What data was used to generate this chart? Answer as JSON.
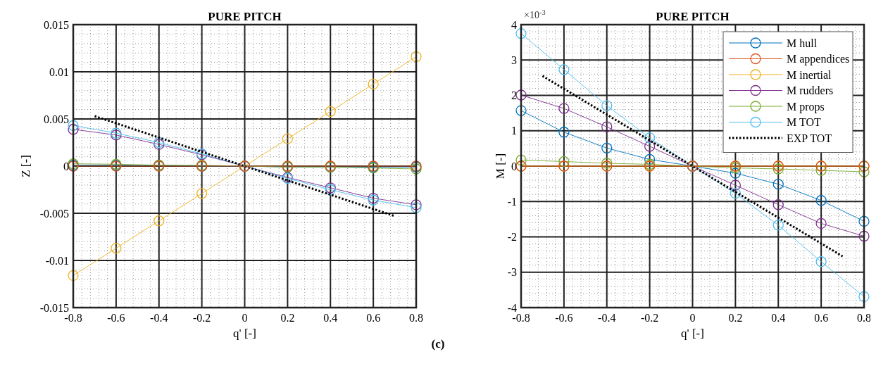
{
  "chart_data": [
    {
      "type": "line",
      "title": "PURE PITCH",
      "xlabel": "q' [-]",
      "ylabel": "Z [-]",
      "xlim": [
        -0.8,
        0.8
      ],
      "xticks": [
        -0.8,
        -0.6,
        -0.4,
        -0.2,
        0,
        0.2,
        0.4,
        0.6,
        0.8
      ],
      "ylim": [
        -0.015,
        0.015
      ],
      "yticks": [
        -0.015,
        -0.01,
        -0.005,
        0,
        0.005,
        0.01,
        0.015
      ],
      "grid": true,
      "marker": "circle",
      "x": [
        -0.8,
        -0.6,
        -0.4,
        -0.2,
        0,
        0.2,
        0.4,
        0.6,
        0.8
      ],
      "annotations": [
        "(c)"
      ],
      "series": [
        {
          "color": "#0072bd",
          "values": [
            0.0001,
            0.0001,
            0.0001,
            0,
            0,
            -0.0001,
            -0.0001,
            -0.0001,
            -0.0001
          ]
        },
        {
          "color": "#d95319",
          "values": [
            0,
            0,
            0,
            0,
            0,
            0,
            0,
            0,
            0
          ]
        },
        {
          "color": "#edb120",
          "values": [
            -0.0116,
            -0.0087,
            -0.0058,
            -0.0029,
            0,
            0.0029,
            0.0058,
            0.0087,
            0.0116
          ]
        },
        {
          "color": "#7e2f8e",
          "values": [
            0.0039,
            0.0033,
            0.0023,
            0.0012,
            0,
            -0.0012,
            -0.0023,
            -0.0034,
            -0.0041
          ]
        },
        {
          "color": "#77ac30",
          "values": [
            0.00025,
            0.0002,
            0.0001,
            0.0001,
            0,
            -0.0001,
            -0.0001,
            -0.0002,
            -0.0003
          ]
        },
        {
          "color": "#4dbeee",
          "values": [
            0.0043,
            0.0035,
            0.0025,
            0.0013,
            0,
            -0.0013,
            -0.0025,
            -0.0036,
            -0.0044
          ]
        },
        {
          "color": "#000000",
          "marker": "none",
          "line_style": "dotted",
          "x": [
            -0.7,
            0,
            0.7
          ],
          "values": [
            0.0053,
            0,
            -0.0053
          ]
        }
      ]
    },
    {
      "type": "line",
      "title": "PURE PITCH",
      "xlabel": "q' [-]",
      "ylabel": "M [-]",
      "xlim": [
        -0.8,
        0.8
      ],
      "xticks": [
        -0.8,
        -0.6,
        -0.4,
        -0.2,
        0,
        0.2,
        0.4,
        0.6,
        0.8
      ],
      "ylim": [
        -4,
        4
      ],
      "yticks": [
        -4,
        -3,
        -2,
        -1,
        0,
        1,
        2,
        3,
        4
      ],
      "grid": true,
      "marker": "circle",
      "legend": "top right",
      "x": [
        -0.8,
        -0.6,
        -0.4,
        -0.2,
        0,
        0.2,
        0.4,
        0.6,
        0.8
      ],
      "annotations": [
        "×10$^{-3}$"
      ],
      "series": [
        {
          "name": "M hull",
          "color": "#0072bd",
          "values": [
            1.57,
            0.96,
            0.51,
            0.19,
            0,
            -0.2,
            -0.51,
            -0.97,
            -1.56
          ]
        },
        {
          "name": "M appendices",
          "color": "#d95319",
          "values": [
            0,
            0,
            0,
            0,
            0,
            0,
            0,
            0,
            0
          ]
        },
        {
          "name": "M inertial",
          "color": "#edb120",
          "values": [
            0,
            0,
            0,
            0,
            0,
            0,
            0,
            0,
            0
          ]
        },
        {
          "name": "M rudders",
          "color": "#7e2f8e",
          "values": [
            2.01,
            1.63,
            1.11,
            0.56,
            0,
            -0.54,
            -1.09,
            -1.62,
            -1.98
          ]
        },
        {
          "name": "M props",
          "color": "#77ac30",
          "values": [
            0.17,
            0.13,
            0.08,
            0.05,
            0,
            -0.05,
            -0.08,
            -0.12,
            -0.16
          ]
        },
        {
          "name": "M TOT",
          "color": "#4dbeee",
          "values": [
            3.75,
            2.73,
            1.71,
            0.8,
            0,
            -0.77,
            -1.67,
            -2.7,
            -3.69
          ]
        },
        {
          "name": "EXP TOT",
          "color": "#000000",
          "marker": "none",
          "line_style": "dotted",
          "x": [
            -0.7,
            0,
            0.7
          ],
          "values": [
            2.55,
            0,
            -2.55
          ]
        }
      ]
    }
  ]
}
